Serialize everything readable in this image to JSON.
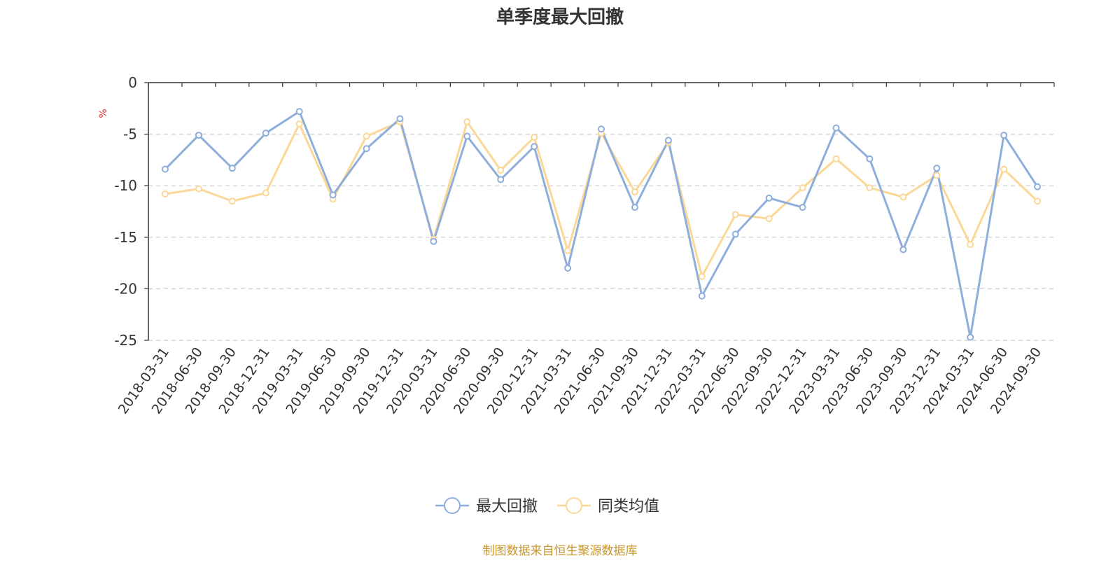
{
  "chart_data": {
    "type": "line",
    "title": "单季度最大回撤",
    "ylabel": "%",
    "ylim": [
      -25,
      0
    ],
    "yticks": [
      0,
      -5,
      -10,
      -15,
      -20,
      -25
    ],
    "grid": true,
    "legend_position": "bottom-center",
    "source_note": "制图数据来自恒生聚源数据库",
    "categories": [
      "2018-03-31",
      "2018-06-30",
      "2018-09-30",
      "2018-12-31",
      "2019-03-31",
      "2019-06-30",
      "2019-09-30",
      "2019-12-31",
      "2020-03-31",
      "2020-06-30",
      "2020-09-30",
      "2020-12-31",
      "2021-03-31",
      "2021-06-30",
      "2021-09-30",
      "2021-12-31",
      "2022-03-31",
      "2022-06-30",
      "2022-09-30",
      "2022-12-31",
      "2023-03-31",
      "2023-06-30",
      "2023-09-30",
      "2023-12-31",
      "2024-03-31",
      "2024-06-30",
      "2024-09-30"
    ],
    "series": [
      {
        "name": "最大回撤",
        "color": "#8eaedb",
        "values": [
          -8.4,
          -5.1,
          -8.3,
          -4.9,
          -2.8,
          -10.9,
          -6.4,
          -3.5,
          -15.4,
          -5.2,
          -9.4,
          -6.2,
          -18.0,
          -4.5,
          -12.1,
          -5.6,
          -20.7,
          -14.7,
          -11.2,
          -12.1,
          -4.4,
          -7.4,
          -16.2,
          -8.3,
          -24.7,
          -5.1,
          -10.1
        ]
      },
      {
        "name": "同类均值",
        "color": "#fbd898",
        "values": [
          -10.8,
          -10.3,
          -11.5,
          -10.7,
          -4.0,
          -11.3,
          -5.2,
          -3.8,
          -15.2,
          -3.8,
          -8.5,
          -5.3,
          -16.3,
          -4.9,
          -10.6,
          -5.8,
          -18.8,
          -12.8,
          -13.2,
          -10.2,
          -7.4,
          -10.2,
          -11.1,
          -9.0,
          -15.7,
          -8.4,
          -11.5
        ]
      }
    ]
  }
}
